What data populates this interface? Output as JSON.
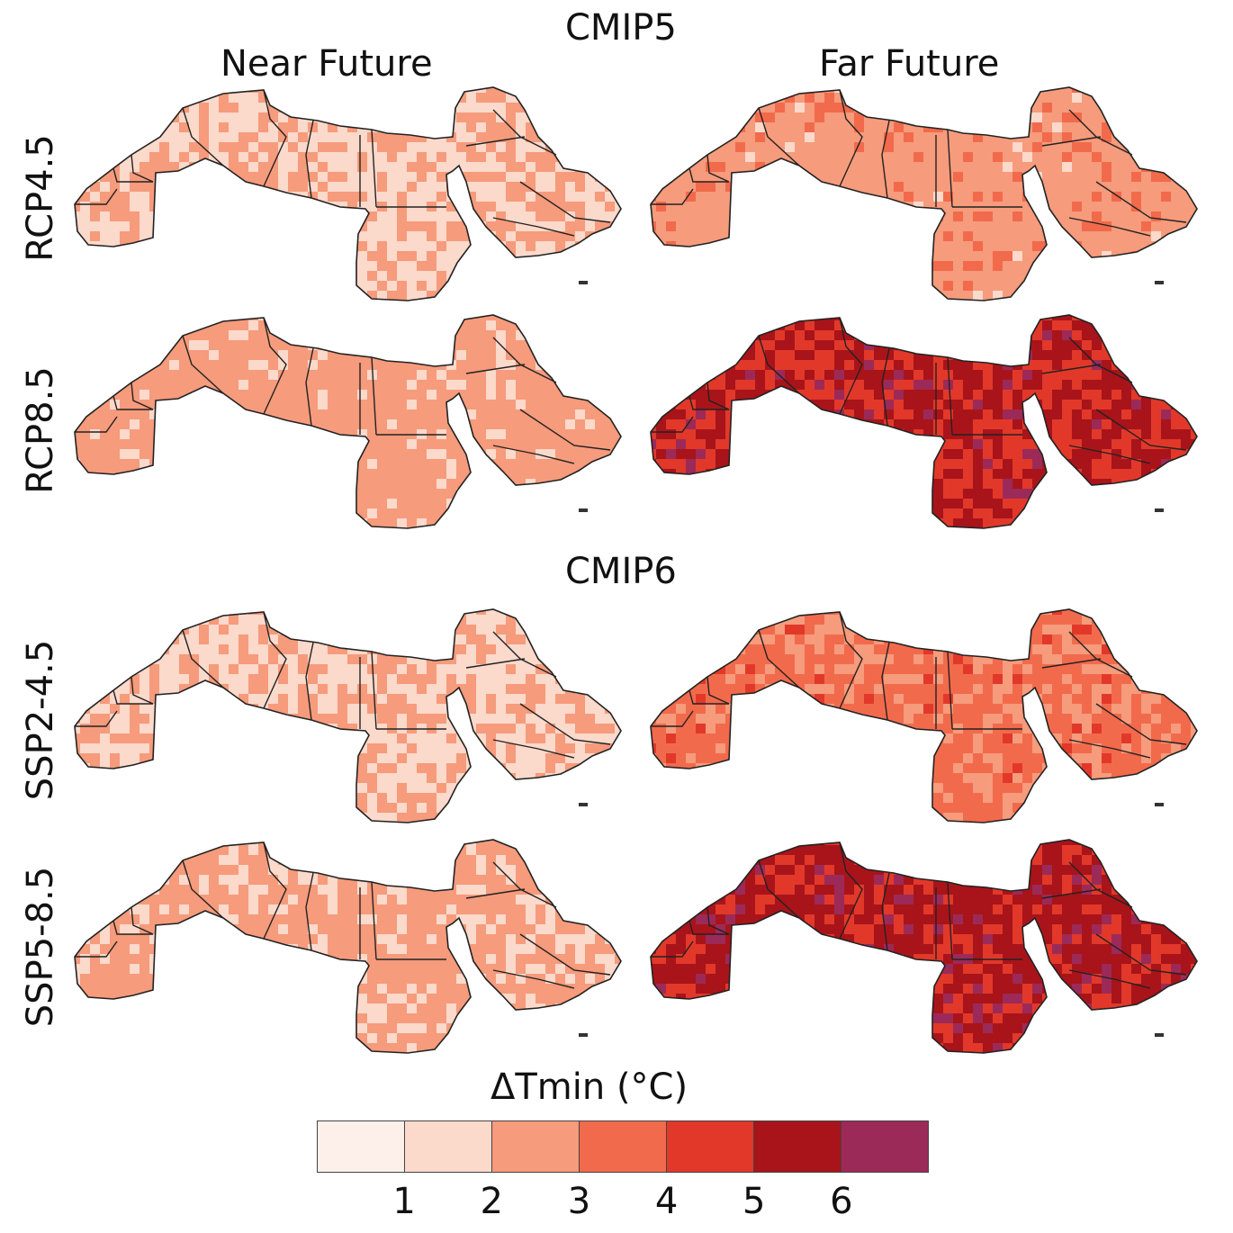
{
  "groups": [
    {
      "title": "CMIP5"
    },
    {
      "title": "CMIP6"
    }
  ],
  "columns": [
    {
      "title": "Near Future"
    },
    {
      "title": "Far Future"
    }
  ],
  "rows": [
    {
      "label": "RCP4.5"
    },
    {
      "label": "RCP8.5"
    },
    {
      "label": "SSP2-4.5"
    },
    {
      "label": "SSP5-8.5"
    }
  ],
  "panels": [
    {
      "row": 0,
      "col": 0,
      "dominant_class": 1,
      "mix": [
        [
          1,
          0.55
        ],
        [
          2,
          0.45
        ]
      ]
    },
    {
      "row": 0,
      "col": 1,
      "dominant_class": 2,
      "mix": [
        [
          2,
          0.8
        ],
        [
          3,
          0.15
        ],
        [
          1,
          0.05
        ]
      ]
    },
    {
      "row": 1,
      "col": 0,
      "dominant_class": 2,
      "mix": [
        [
          2,
          0.85
        ],
        [
          1,
          0.15
        ]
      ]
    },
    {
      "row": 1,
      "col": 1,
      "dominant_class": 5,
      "mix": [
        [
          5,
          0.5
        ],
        [
          4,
          0.4
        ],
        [
          6,
          0.1
        ]
      ]
    },
    {
      "row": 2,
      "col": 0,
      "dominant_class": 1,
      "mix": [
        [
          1,
          0.6
        ],
        [
          2,
          0.4
        ]
      ]
    },
    {
      "row": 2,
      "col": 1,
      "dominant_class": 3,
      "mix": [
        [
          3,
          0.6
        ],
        [
          2,
          0.35
        ],
        [
          4,
          0.05
        ]
      ]
    },
    {
      "row": 3,
      "col": 0,
      "dominant_class": 2,
      "mix": [
        [
          2,
          0.75
        ],
        [
          1,
          0.25
        ]
      ]
    },
    {
      "row": 3,
      "col": 1,
      "dominant_class": 5,
      "mix": [
        [
          5,
          0.55
        ],
        [
          4,
          0.3
        ],
        [
          6,
          0.15
        ]
      ]
    }
  ],
  "legend": {
    "title": "ΔTmin (°C)",
    "colors": [
      "#fdf0ea",
      "#fbd9cb",
      "#f69b7c",
      "#f26a4c",
      "#e2382a",
      "#a8141a",
      "#9c2a58"
    ],
    "ticks": [
      "1",
      "2",
      "3",
      "4",
      "5",
      "6"
    ]
  }
}
